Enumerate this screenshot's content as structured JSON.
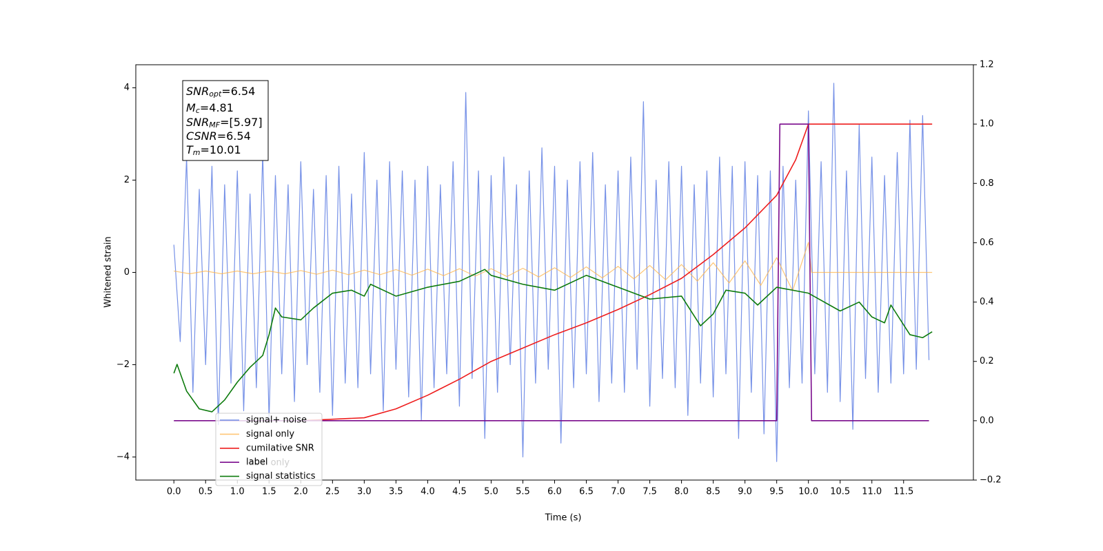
{
  "chart_data": {
    "type": "line",
    "xlabel": "Time (s)",
    "ylabel": "Whitened strain",
    "xlim": [
      -0.6,
      12.6
    ],
    "ylim": [
      -4.5,
      4.5
    ],
    "y2lim": [
      -0.2,
      1.2
    ],
    "xticks": [
      {
        "value": 0,
        "label": "0.0"
      },
      0.5,
      {
        "value": 1,
        "label": "1.0"
      },
      1.5,
      {
        "value": 2,
        "label": "2.0"
      },
      2.5,
      {
        "value": 3,
        "label": "3.0"
      },
      3.5,
      {
        "value": 4,
        "label": "4.0"
      },
      4.5,
      {
        "value": 5,
        "label": "5.0"
      },
      5.5,
      {
        "value": 6,
        "label": "6.0"
      },
      6.5,
      {
        "value": 7,
        "label": "7.0"
      },
      7.5,
      {
        "value": 8,
        "label": "8.0"
      },
      8.5,
      {
        "value": 9,
        "label": "9.0"
      },
      9.5,
      {
        "value": 10,
        "label": "10.0"
      },
      10.5,
      {
        "value": 11,
        "label": "11.0"
      },
      11.5
    ],
    "yticks": [
      {
        "value": -4,
        "label": "−4"
      },
      {
        "value": -2,
        "label": "−2"
      },
      0,
      2,
      4
    ],
    "y2ticks": [
      {
        "value": -0.2,
        "label": "−0.2"
      },
      {
        "value": 0,
        "label": "0.0"
      },
      0.2,
      0.4,
      0.6,
      0.8,
      {
        "value": 1,
        "label": "1.0"
      },
      1.2
    ],
    "legend": "lower left",
    "legend_hidden": "label only",
    "annotation": [
      {
        "base": "SNR",
        "sub": "opt",
        "rest": "=6.54"
      },
      {
        "base": "M",
        "sub": "c",
        "rest": "=4.81"
      },
      {
        "base": "SNR",
        "sub": "MF",
        "rest": "=[5.97]"
      },
      {
        "base": "CSNR",
        "sub": "",
        "rest": "=6.54"
      },
      {
        "base": "T",
        "sub": "m",
        "rest": "=10.01"
      }
    ],
    "series": [
      {
        "name": "signal+ noise",
        "color": "#6f8be6",
        "x": [
          0,
          0.1,
          0.2,
          0.3,
          0.4,
          0.5,
          0.6,
          0.7,
          0.8,
          0.9,
          1,
          1.1,
          1.2,
          1.3,
          1.4,
          1.5,
          1.6,
          1.7,
          1.8,
          1.9,
          2,
          2.1,
          2.2,
          2.3,
          2.4,
          2.5,
          2.6,
          2.7,
          2.8,
          2.9,
          3,
          3.1,
          3.2,
          3.3,
          3.4,
          3.5,
          3.6,
          3.7,
          3.8,
          3.9,
          4,
          4.1,
          4.2,
          4.3,
          4.4,
          4.5,
          4.6,
          4.7,
          4.8,
          4.9,
          5,
          5.1,
          5.2,
          5.3,
          5.4,
          5.5,
          5.6,
          5.7,
          5.8,
          5.9,
          6,
          6.1,
          6.2,
          6.3,
          6.4,
          6.5,
          6.6,
          6.7,
          6.8,
          6.9,
          7,
          7.1,
          7.2,
          7.3,
          7.4,
          7.5,
          7.6,
          7.7,
          7.8,
          7.9,
          8,
          8.1,
          8.2,
          8.3,
          8.4,
          8.5,
          8.6,
          8.7,
          8.8,
          8.9,
          9,
          9.1,
          9.2,
          9.3,
          9.4,
          9.5,
          9.6,
          9.7,
          9.8,
          9.9,
          10,
          10.1,
          10.2,
          10.3,
          10.4,
          10.5,
          10.6,
          10.7,
          10.8,
          10.9,
          11,
          11.1,
          11.2,
          11.3,
          11.4,
          11.5,
          11.6,
          11.7,
          11.8,
          11.9
        ],
        "values": [
          0.6,
          -1.5,
          2.5,
          -2.6,
          1.8,
          -2.0,
          2.3,
          -3.3,
          1.9,
          -2.4,
          2.2,
          -3.0,
          1.7,
          -2.5,
          2.6,
          -3.2,
          2.1,
          -2.2,
          1.9,
          -2.8,
          2.4,
          -2.0,
          1.8,
          -2.6,
          2.1,
          -3.1,
          2.3,
          -2.4,
          1.7,
          -2.5,
          2.6,
          -2.2,
          2.0,
          -3.0,
          2.4,
          -2.1,
          2.2,
          -2.7,
          2.0,
          -3.2,
          2.3,
          -2.5,
          1.9,
          -2.2,
          2.4,
          -2.9,
          3.9,
          -2.3,
          2.2,
          -3.6,
          2.1,
          -2.6,
          2.5,
          -2.0,
          1.9,
          -4.0,
          2.2,
          -2.4,
          2.7,
          -2.1,
          2.3,
          -3.7,
          2.0,
          -2.5,
          2.4,
          -2.2,
          2.6,
          -2.8,
          1.9,
          -2.4,
          2.2,
          -2.6,
          2.5,
          -2.1,
          3.7,
          -2.9,
          2.0,
          -2.3,
          2.4,
          -2.5,
          2.3,
          -3.1,
          1.9,
          -2.4,
          2.2,
          -2.7,
          2.5,
          -2.2,
          2.3,
          -3.6,
          2.4,
          -2.6,
          2.1,
          -3.5,
          2.2,
          -4.1,
          2.3,
          -2.5,
          2.0,
          -2.4,
          3.5,
          -2.2,
          2.4,
          -2.6,
          4.1,
          -2.8,
          2.2,
          -3.4,
          3.2,
          -2.3,
          2.5,
          -2.6,
          2.1,
          -2.4,
          2.6,
          -2.2,
          3.3,
          -2.1,
          3.4,
          -1.9
        ]
      },
      {
        "name": "signal only",
        "color": "#ffb347",
        "x": [
          0,
          0.25,
          0.5,
          0.75,
          1,
          1.25,
          1.5,
          1.75,
          2,
          2.25,
          2.5,
          2.75,
          3,
          3.25,
          3.5,
          3.75,
          4,
          4.25,
          4.5,
          4.75,
          5,
          5.25,
          5.5,
          5.75,
          6,
          6.25,
          6.5,
          6.75,
          7,
          7.25,
          7.5,
          7.75,
          8,
          8.25,
          8.5,
          8.75,
          9,
          9.25,
          9.5,
          9.75,
          10,
          10.05,
          11.95
        ],
        "values": [
          0.03,
          -0.03,
          0.03,
          -0.03,
          0.03,
          -0.03,
          0.03,
          -0.03,
          0.04,
          -0.04,
          0.05,
          -0.05,
          0.05,
          -0.05,
          0.06,
          -0.06,
          0.07,
          -0.07,
          0.08,
          -0.08,
          0.08,
          -0.09,
          0.09,
          -0.1,
          0.1,
          -0.11,
          0.12,
          -0.12,
          0.13,
          -0.14,
          0.15,
          -0.16,
          0.17,
          -0.19,
          0.21,
          -0.23,
          0.25,
          -0.28,
          0.32,
          -0.4,
          0.65,
          0,
          0
        ]
      },
      {
        "name": "cumilative SNR",
        "color": "#ee1c1c",
        "axis": "y2",
        "x": [
          2.0,
          3.0,
          3.5,
          4.0,
          4.5,
          5.0,
          5.5,
          6.0,
          6.5,
          7.0,
          7.5,
          8.0,
          8.5,
          9.0,
          9.5,
          9.8,
          10.0,
          11.95
        ],
        "values": [
          0,
          0.01,
          0.04,
          0.086,
          0.14,
          0.2,
          0.245,
          0.29,
          0.33,
          0.375,
          0.425,
          0.48,
          0.56,
          0.65,
          0.76,
          0.88,
          1.0,
          1.0
        ]
      },
      {
        "name": "label",
        "color": "#7a0a8c",
        "axis": "y2",
        "x": [
          0,
          9.5,
          9.55,
          10.0,
          10.05,
          11.9
        ],
        "values": [
          0,
          0,
          1,
          1,
          0,
          0
        ]
      },
      {
        "name": "signal statistics",
        "color": "#0c7a0c",
        "axis": "y2",
        "x": [
          0,
          0.05,
          0.2,
          0.4,
          0.6,
          0.8,
          1.0,
          1.2,
          1.4,
          1.5,
          1.6,
          1.7,
          2.0,
          2.2,
          2.5,
          2.8,
          3.0,
          3.1,
          3.5,
          4.0,
          4.5,
          4.9,
          5.0,
          5.5,
          6.0,
          6.5,
          7.0,
          7.5,
          8.0,
          8.3,
          8.5,
          8.7,
          9.0,
          9.2,
          9.5,
          10.0,
          10.5,
          10.8,
          11.0,
          11.2,
          11.3,
          11.6,
          11.8,
          11.95
        ],
        "values": [
          0.16,
          0.19,
          0.1,
          0.04,
          0.03,
          0.07,
          0.13,
          0.18,
          0.22,
          0.29,
          0.38,
          0.35,
          0.34,
          0.38,
          0.43,
          0.44,
          0.42,
          0.46,
          0.42,
          0.45,
          0.47,
          0.51,
          0.49,
          0.46,
          0.44,
          0.49,
          0.45,
          0.41,
          0.42,
          0.32,
          0.36,
          0.44,
          0.43,
          0.39,
          0.45,
          0.43,
          0.37,
          0.4,
          0.35,
          0.33,
          0.39,
          0.29,
          0.28,
          0.3
        ]
      }
    ]
  }
}
